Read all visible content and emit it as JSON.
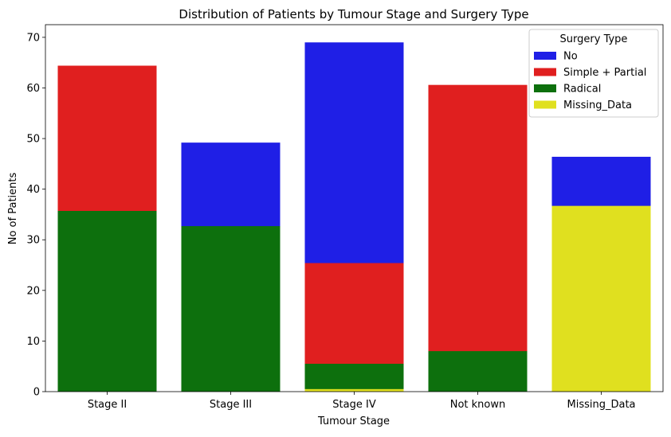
{
  "chart_data": {
    "type": "bar",
    "title": "Distribution of Patients by Tumour Stage and Surgery Type",
    "xlabel": "Tumour Stage",
    "ylabel": "No of Patients",
    "ylim": [
      0,
      72.5
    ],
    "yticks": [
      0,
      10,
      20,
      30,
      40,
      50,
      60,
      70
    ],
    "categories": [
      "Stage II",
      "Stage III",
      "Stage IV",
      "Not known",
      "Missing_Data"
    ],
    "grid": false,
    "legend": {
      "title": "Surgery Type",
      "placement": "top-right"
    },
    "draw_order": [
      "No",
      "Simple + Partial",
      "Radical",
      "Missing_Data"
    ],
    "series": [
      {
        "name": "No",
        "color": "#1f1fe6",
        "values": [
          null,
          49.2,
          69.0,
          null,
          46.4
        ]
      },
      {
        "name": "Simple + Partial",
        "color": "#e01f1f",
        "values": [
          64.4,
          null,
          25.4,
          60.6,
          null
        ]
      },
      {
        "name": "Radical",
        "color": "#0d700d",
        "values": [
          35.7,
          32.7,
          5.5,
          8.0,
          null
        ]
      },
      {
        "name": "Missing_Data",
        "color": "#e0e01f",
        "values": [
          null,
          null,
          0.5,
          null,
          36.7
        ]
      }
    ]
  }
}
